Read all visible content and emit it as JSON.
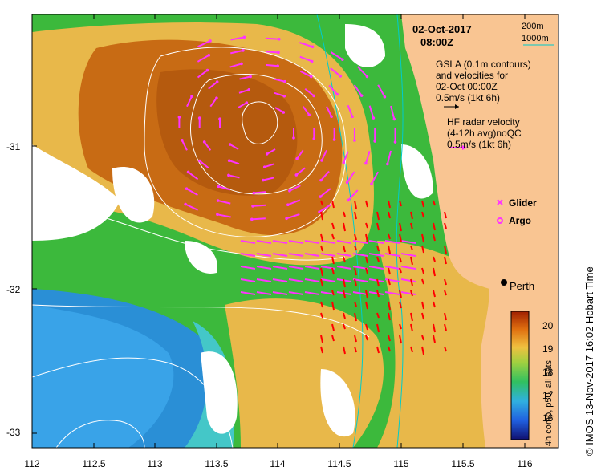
{
  "map": {
    "date": "02-Oct-2017",
    "time": "08:00Z",
    "scale_200m": "200m",
    "scale_1000m": "1000m",
    "gsla_legend": [
      "GSLA (0.1m contours)",
      "and velocities for",
      "02-Oct 00:00Z",
      "0.5m/s (1kt 6h)"
    ],
    "hf_legend": [
      "HF radar velocity",
      "(4-12h avg)noQC",
      "0.5m/s (1kt 6h)"
    ],
    "glider_label": "Glider",
    "argo_label": "Argo",
    "city_label": "Perth",
    "credit": "© IMOS 13-Nov-2017 16:02 Hobart Time",
    "colorbar_label": "4h comp, p50, all sats",
    "colorbar_ticks": [
      "16",
      "17",
      "18",
      "19",
      "20"
    ],
    "x_ticks": [
      "112",
      "112.5",
      "113",
      "113.5",
      "114",
      "114.5",
      "115",
      "115.5",
      "116"
    ],
    "y_ticks": [
      "-31",
      "-32",
      "-33"
    ],
    "colors": {
      "land": "#f9c592",
      "cloud": "#ffffff",
      "sst_cold": "#2a8fd6",
      "sst_cool": "#44c7c8",
      "sst_mid": "#3cb93c",
      "sst_warm": "#e8b84a",
      "sst_hot": "#c86b14",
      "vector": "#ff33ff",
      "hf_vector": "#ff0000",
      "isobath": "#00cccc"
    }
  }
}
